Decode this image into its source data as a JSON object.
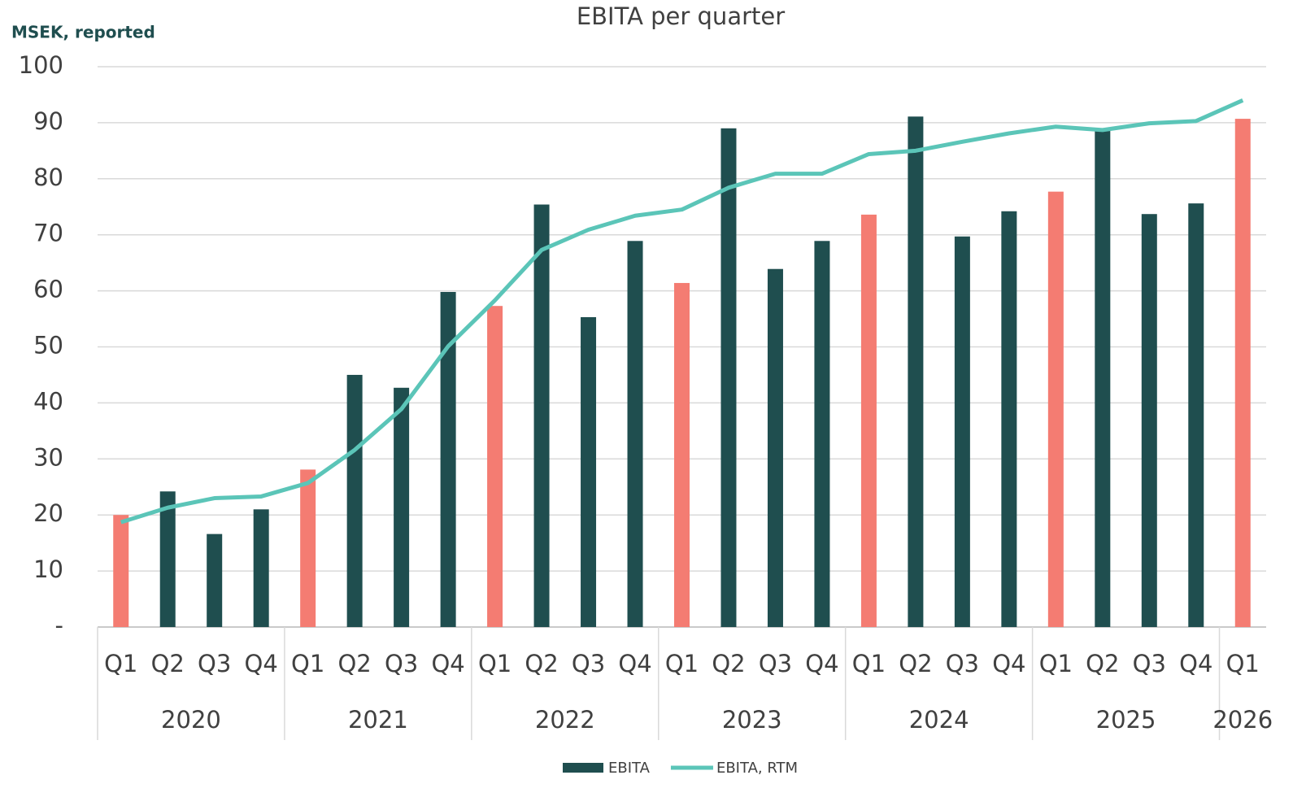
{
  "chart_data": {
    "type": "bar_line",
    "title": "EBITA per quarter",
    "y_label": "MSEK, reported",
    "categories": [
      "Q1",
      "Q2",
      "Q3",
      "Q4",
      "Q1",
      "Q2",
      "Q3",
      "Q4",
      "Q1",
      "Q2",
      "Q3",
      "Q4",
      "Q1",
      "Q2",
      "Q3",
      "Q4",
      "Q1",
      "Q2",
      "Q3",
      "Q4",
      "Q1",
      "Q2",
      "Q3",
      "Q4",
      "Q1"
    ],
    "category_groups": [
      "2020",
      null,
      null,
      null,
      "2021",
      null,
      null,
      null,
      "2022",
      null,
      null,
      null,
      "2023",
      null,
      null,
      null,
      "2024",
      null,
      null,
      null,
      "2025",
      null,
      null,
      null,
      "2026"
    ],
    "series": [
      {
        "name": "EBITA",
        "type": "bar",
        "color": "#1f4e4f",
        "colors": [
          "#f47c72",
          "#1f4e4f",
          "#1f4e4f",
          "#1f4e4f",
          "#f47c72",
          "#1f4e4f",
          "#1f4e4f",
          "#1f4e4f",
          "#f47c72",
          "#1f4e4f",
          "#1f4e4f",
          "#1f4e4f",
          "#f47c72",
          "#1f4e4f",
          "#1f4e4f",
          "#1f4e4f",
          "#f47c72",
          "#1f4e4f",
          "#1f4e4f",
          "#1f4e4f",
          "#f47c72",
          "#1f4e4f",
          "#1f4e4f",
          "#1f4e4f",
          "#f47c72"
        ],
        "values": [
          20,
          24.2,
          16.6,
          21,
          28.1,
          45,
          42.7,
          59.8,
          57.3,
          75.4,
          55.3,
          68.9,
          61.4,
          89,
          63.9,
          68.9,
          73.6,
          91.1,
          69.7,
          74.2,
          77.7,
          89,
          73.7,
          75.6,
          90.7
        ]
      },
      {
        "name": "EBITA, RTM",
        "type": "line",
        "color": "#5bc5b8",
        "values": [
          18.7,
          21.3,
          23,
          23.3,
          25.7,
          31.6,
          38.9,
          50.1,
          58.3,
          67.3,
          70.9,
          73.4,
          74.5,
          78.4,
          80.9,
          80.9,
          84.4,
          85,
          86.6,
          88.1,
          89.3,
          88.7,
          89.9,
          90.3,
          94
        ]
      }
    ],
    "ylim": [
      0,
      100
    ],
    "yticks": [
      {
        "value": 0,
        "label": "-"
      },
      10,
      20,
      30,
      40,
      50,
      60,
      70,
      80,
      90,
      100
    ],
    "grid": true,
    "legend": "bottom"
  }
}
